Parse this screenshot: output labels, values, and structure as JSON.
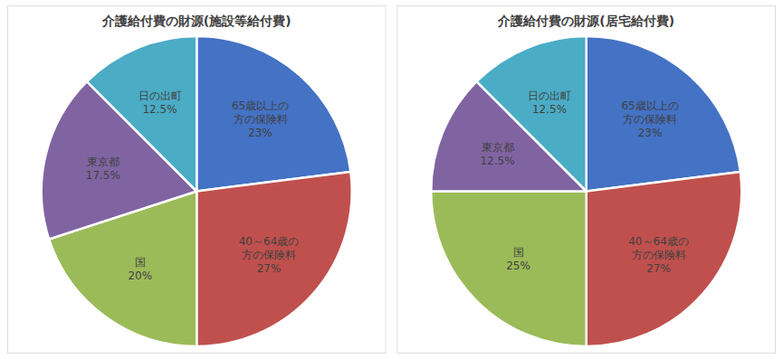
{
  "chart_data": [
    {
      "type": "pie",
      "title": "介護給付費の財源(施設等給付費)",
      "categories": [
        "65歳以上の\n方の保険料",
        "40～64歳の\n方の保険料",
        "国",
        "東京都",
        "日の出町"
      ],
      "values": [
        23,
        27,
        20,
        17.5,
        12.5
      ],
      "value_labels": [
        "23%",
        "27%",
        "20%",
        "17.5%",
        "12.5%"
      ],
      "data_labels": true,
      "colors": [
        "#4472C4",
        "#C0504D",
        "#9BBB59",
        "#8064A2",
        "#4BACC6"
      ]
    },
    {
      "type": "pie",
      "title": "介護給付費の財源(居宅給付費)",
      "categories": [
        "65歳以上の\n方の保険料",
        "40～64歳の\n方の保険料",
        "国",
        "東京都",
        "日の出町"
      ],
      "values": [
        23,
        27,
        25,
        12.5,
        12.5
      ],
      "value_labels": [
        "23%",
        "27%",
        "25%",
        "12.5%",
        "12.5%"
      ],
      "data_labels": true,
      "colors": [
        "#4472C4",
        "#C0504D",
        "#9BBB59",
        "#8064A2",
        "#4BACC6"
      ]
    }
  ]
}
